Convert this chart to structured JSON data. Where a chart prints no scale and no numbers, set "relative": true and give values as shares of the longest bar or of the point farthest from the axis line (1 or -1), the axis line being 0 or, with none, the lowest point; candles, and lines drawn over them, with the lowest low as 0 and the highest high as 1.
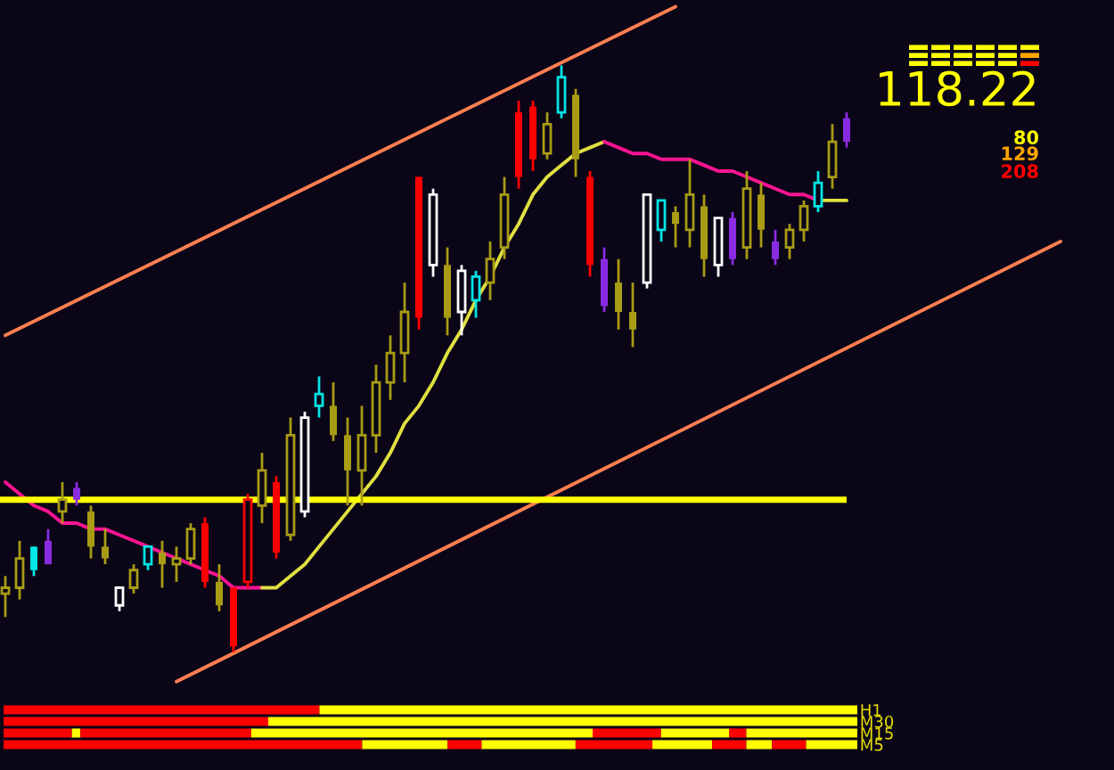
{
  "chart_data": [
    {
      "type": "candlestick",
      "relative": true,
      "tick_labels": false,
      "categories": [
        null,
        null,
        null,
        null,
        null,
        null,
        null,
        null,
        null,
        null,
        null,
        null,
        null,
        null,
        null,
        null,
        null,
        null,
        null,
        null,
        null,
        null,
        null,
        null,
        null,
        null,
        null,
        null,
        null,
        null,
        null,
        null,
        null,
        null,
        null,
        null,
        null,
        null,
        null,
        null,
        null,
        null,
        null,
        null,
        null,
        null,
        null,
        null,
        null,
        null,
        null,
        null,
        null,
        null,
        null,
        null,
        null,
        null,
        null,
        null,
        null,
        null,
        null,
        null,
        null,
        null,
        null,
        null,
        null,
        null,
        null,
        null,
        null,
        null,
        null
      ],
      "ohlc": [
        [
          0.1,
          0.13,
          0.06,
          0.11
        ],
        [
          0.11,
          0.19,
          0.09,
          0.16
        ],
        [
          0.18,
          0.18,
          0.13,
          0.14
        ],
        [
          0.19,
          0.21,
          0.15,
          0.15
        ],
        [
          0.24,
          0.29,
          0.22,
          0.26
        ],
        [
          0.28,
          0.29,
          0.25,
          0.26
        ],
        [
          0.24,
          0.25,
          0.16,
          0.18
        ],
        [
          0.18,
          0.21,
          0.15,
          0.16
        ],
        [
          0.08,
          0.11,
          0.07,
          0.11
        ],
        [
          0.11,
          0.15,
          0.1,
          0.14
        ],
        [
          0.15,
          0.18,
          0.14,
          0.18
        ],
        [
          0.17,
          0.19,
          0.11,
          0.15
        ],
        [
          0.15,
          0.18,
          0.12,
          0.16
        ],
        [
          0.16,
          0.22,
          0.15,
          0.21
        ],
        [
          0.22,
          0.23,
          0.11,
          0.12
        ],
        [
          0.12,
          0.15,
          0.07,
          0.08
        ],
        [
          0.11,
          0.11,
          0.0,
          0.01
        ],
        [
          0.12,
          0.27,
          0.11,
          0.26
        ],
        [
          0.25,
          0.34,
          0.22,
          0.31
        ],
        [
          0.29,
          0.3,
          0.16,
          0.17
        ],
        [
          0.2,
          0.4,
          0.19,
          0.37
        ],
        [
          0.24,
          0.41,
          0.23,
          0.4
        ],
        [
          0.42,
          0.47,
          0.4,
          0.44
        ],
        [
          0.42,
          0.46,
          0.36,
          0.37
        ],
        [
          0.37,
          0.4,
          0.25,
          0.31
        ],
        [
          0.31,
          0.42,
          0.25,
          0.37
        ],
        [
          0.37,
          0.49,
          0.34,
          0.46
        ],
        [
          0.46,
          0.54,
          0.43,
          0.51
        ],
        [
          0.51,
          0.63,
          0.46,
          0.58
        ],
        [
          0.81,
          0.81,
          0.55,
          0.57
        ],
        [
          0.66,
          0.79,
          0.64,
          0.78
        ],
        [
          0.66,
          0.69,
          0.54,
          0.57
        ],
        [
          0.58,
          0.66,
          0.54,
          0.65
        ],
        [
          0.6,
          0.65,
          0.57,
          0.64
        ],
        [
          0.63,
          0.7,
          0.6,
          0.67
        ],
        [
          0.69,
          0.81,
          0.67,
          0.78
        ],
        [
          0.92,
          0.94,
          0.79,
          0.81
        ],
        [
          0.93,
          0.94,
          0.82,
          0.84
        ],
        [
          0.85,
          0.92,
          0.84,
          0.9
        ],
        [
          0.92,
          1.0,
          0.91,
          0.98
        ],
        [
          0.95,
          0.96,
          0.81,
          0.84
        ],
        [
          0.81,
          0.82,
          0.64,
          0.66
        ],
        [
          0.67,
          0.69,
          0.58,
          0.59
        ],
        [
          0.63,
          0.67,
          0.55,
          0.58
        ],
        [
          0.58,
          0.63,
          0.52,
          0.55
        ],
        [
          0.63,
          0.78,
          0.62,
          0.78
        ],
        [
          0.72,
          0.77,
          0.7,
          0.77
        ],
        [
          0.75,
          0.76,
          0.69,
          0.73
        ],
        [
          0.72,
          0.84,
          0.69,
          0.78
        ],
        [
          0.76,
          0.78,
          0.64,
          0.67
        ],
        [
          0.66,
          0.74,
          0.64,
          0.74
        ],
        [
          0.74,
          0.75,
          0.66,
          0.67
        ],
        [
          0.69,
          0.82,
          0.67,
          0.79
        ],
        [
          0.78,
          0.8,
          0.69,
          0.72
        ],
        [
          0.7,
          0.72,
          0.66,
          0.67
        ],
        [
          0.69,
          0.73,
          0.67,
          0.72
        ],
        [
          0.72,
          0.77,
          0.7,
          0.76
        ],
        [
          0.76,
          0.82,
          0.75,
          0.8
        ],
        [
          0.81,
          0.9,
          0.79,
          0.87
        ],
        [
          0.91,
          0.92,
          0.86,
          0.87
        ],
        null,
        null,
        null,
        null,
        null,
        null,
        null,
        null,
        null,
        null,
        null,
        null,
        null,
        null,
        null
      ],
      "colors": [
        "#a89c14",
        "#a89c14",
        "#00e5e5",
        "#8a2be2",
        "#a89c14",
        "#8a2be2",
        "#a89c14",
        "#a89c14",
        "#ffffff",
        "#a89c14",
        "#00e5e5",
        "#a89c14",
        "#a89c14",
        "#a89c14",
        "#ff0000",
        "#a89c14",
        "#ff0000",
        "#ff0000",
        "#a89c14",
        "#ff0000",
        "#a89c14",
        "#ffffff",
        "#00e5e5",
        "#a89c14",
        "#a89c14",
        "#a89c14",
        "#a89c14",
        "#a89c14",
        "#a89c14",
        "#ff0000",
        "#ffffff",
        "#a89c14",
        "#ffffff",
        "#00e5e5",
        "#a89c14",
        "#a89c14",
        "#ff0000",
        "#ff0000",
        "#a89c14",
        "#00e5e5",
        "#a89c14",
        "#ff0000",
        "#8a2be2",
        "#a89c14",
        "#a89c14",
        "#ffffff",
        "#00e5e5",
        "#a89c14",
        "#a89c14",
        "#a89c14",
        "#ffffff",
        "#8a2be2",
        "#a89c14",
        "#a89c14",
        "#8a2be2",
        "#a89c14",
        "#a89c14",
        "#00e5e5",
        "#a89c14",
        "#8a2be2",
        null,
        null,
        null,
        null,
        null,
        null,
        null,
        null,
        null,
        null,
        null,
        null,
        null,
        null,
        null
      ],
      "series": [
        {
          "type": "line",
          "color": "#ff7f50",
          "values": [
            0.54,
            null,
            null,
            null,
            null,
            null,
            null,
            null,
            null,
            null,
            null,
            null,
            null,
            null,
            null,
            null,
            null,
            null,
            null,
            null,
            null,
            null,
            null,
            null,
            null,
            null,
            null,
            null,
            null,
            null,
            null,
            null,
            null,
            null,
            null,
            null,
            null,
            null,
            null,
            null,
            null,
            null,
            null,
            null,
            null,
            null,
            null,
            1.1,
            null,
            null,
            null,
            null,
            null,
            null,
            null,
            null,
            null,
            null,
            null,
            null,
            null,
            null,
            null,
            null,
            null,
            null,
            null,
            null,
            null,
            null,
            null,
            null,
            null,
            null,
            null
          ]
        },
        {
          "type": "line",
          "color": "#ff7f50",
          "values": [
            null,
            null,
            null,
            null,
            null,
            null,
            null,
            null,
            null,
            null,
            null,
            null,
            -0.05,
            null,
            null,
            null,
            null,
            null,
            null,
            null,
            null,
            null,
            null,
            null,
            null,
            null,
            null,
            null,
            null,
            null,
            null,
            null,
            null,
            null,
            null,
            null,
            null,
            null,
            null,
            null,
            null,
            null,
            null,
            null,
            null,
            null,
            null,
            null,
            null,
            null,
            null,
            null,
            null,
            null,
            null,
            null,
            null,
            null,
            null,
            null,
            null,
            null,
            null,
            null,
            null,
            null,
            null,
            null,
            null,
            null,
            null,
            null,
            null,
            null,
            0.7
          ]
        },
        {
          "type": "line",
          "color": "#ff1493",
          "values": [
            0.29,
            0.27,
            0.25,
            0.24,
            0.22,
            0.22,
            0.21,
            0.21,
            0.2,
            0.19,
            0.18,
            0.17,
            0.16,
            0.15,
            0.14,
            0.13,
            0.11,
            0.11,
            0.11,
            null,
            null,
            null,
            null,
            null,
            null,
            null,
            null,
            null,
            null,
            null,
            null,
            null,
            null,
            null,
            null,
            null,
            null,
            null,
            null,
            null,
            null,
            null,
            null,
            null,
            null,
            null,
            null,
            null,
            null,
            null,
            null,
            null,
            null,
            null,
            null,
            null,
            null,
            null,
            null,
            null,
            null,
            null,
            null,
            null,
            null,
            null,
            null,
            null,
            null,
            null,
            null,
            null,
            null,
            null,
            null
          ]
        },
        {
          "type": "line",
          "color": "#e0e040",
          "values": [
            null,
            null,
            null,
            null,
            null,
            null,
            null,
            null,
            null,
            null,
            null,
            null,
            null,
            null,
            null,
            null,
            null,
            null,
            0.11,
            0.11,
            0.13,
            0.15,
            0.18,
            0.21,
            0.24,
            0.27,
            0.3,
            0.34,
            0.39,
            0.42,
            0.46,
            0.51,
            0.55,
            0.6,
            0.64,
            0.69,
            0.73,
            0.78,
            0.81,
            0.83,
            0.85,
            0.86,
            0.87,
            null,
            null,
            null,
            null,
            null,
            null,
            null,
            null,
            null,
            null,
            null,
            null,
            null,
            null,
            null,
            null,
            null,
            null,
            null,
            null,
            null,
            null,
            null,
            null,
            null,
            null,
            null,
            null,
            null,
            null,
            null,
            null
          ]
        },
        {
          "type": "line",
          "color": "#ff1493",
          "values": [
            null,
            null,
            null,
            null,
            null,
            null,
            null,
            null,
            null,
            null,
            null,
            null,
            null,
            null,
            null,
            null,
            null,
            null,
            null,
            null,
            null,
            null,
            null,
            null,
            null,
            null,
            null,
            null,
            null,
            null,
            null,
            null,
            null,
            null,
            null,
            null,
            null,
            null,
            null,
            null,
            null,
            null,
            0.87,
            0.86,
            0.85,
            0.85,
            0.84,
            0.84,
            0.84,
            0.83,
            0.82,
            0.82,
            0.81,
            0.8,
            0.79,
            0.78,
            0.78,
            0.77,
            null,
            null,
            null,
            null,
            null,
            null,
            null,
            null,
            null,
            null,
            null,
            null,
            null,
            null,
            null,
            null,
            null
          ]
        },
        {
          "type": "line",
          "color": "#e0e040",
          "values": [
            null,
            null,
            null,
            null,
            null,
            null,
            null,
            null,
            null,
            null,
            null,
            null,
            null,
            null,
            null,
            null,
            null,
            null,
            null,
            null,
            null,
            null,
            null,
            null,
            null,
            null,
            null,
            null,
            null,
            null,
            null,
            null,
            null,
            null,
            null,
            null,
            null,
            null,
            null,
            null,
            null,
            null,
            null,
            null,
            null,
            null,
            null,
            null,
            null,
            null,
            null,
            null,
            null,
            null,
            null,
            null,
            null,
            0.77,
            0.77,
            0.77,
            null,
            null,
            null,
            null,
            null,
            null,
            null,
            null,
            null,
            null,
            null,
            null,
            null,
            null,
            null
          ]
        }
      ],
      "ref_lines": [
        {
          "axis": "y",
          "value": 0.26,
          "color": "#ffff00"
        }
      ],
      "annotations": [
        "118.22",
        "80",
        "129",
        "208"
      ]
    },
    {
      "type": "bar",
      "orientation": "horizontal",
      "stacked": true,
      "relative": true,
      "tick_labels": "y",
      "categories": [
        "H1",
        "M30",
        "M15",
        "M5"
      ],
      "series": [
        {
          "color": "#ff0000",
          "values": [
            0.37,
            0.31,
            0.08,
            0.42
          ]
        },
        {
          "color": "#ffff00",
          "values": [
            0.63,
            0.69,
            0.01,
            0.1
          ]
        },
        {
          "color": "#ff0000",
          "values": [
            null,
            null,
            0.2,
            0.04
          ]
        },
        {
          "color": "#ffff00",
          "values": [
            null,
            null,
            0.4,
            0.11
          ]
        },
        {
          "color": "#ff0000",
          "values": [
            null,
            null,
            0.08,
            0.09
          ]
        },
        {
          "color": "#ffff00",
          "values": [
            null,
            null,
            0.08,
            0.07
          ]
        },
        {
          "color": "#ff0000",
          "values": [
            null,
            null,
            0.02,
            0.04
          ]
        },
        {
          "color": "#ffff00",
          "values": [
            null,
            null,
            0.13,
            0.03
          ]
        },
        {
          "color": "#ff0000",
          "values": [
            null,
            null,
            null,
            0.04
          ]
        },
        {
          "color": "#ffff00",
          "values": [
            null,
            null,
            null,
            0.06
          ]
        }
      ]
    }
  ]
}
